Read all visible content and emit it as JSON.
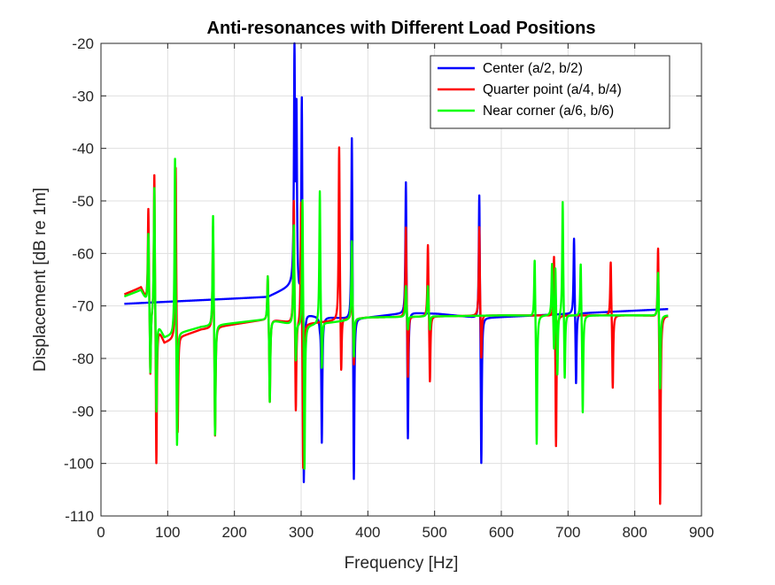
{
  "chart_data": {
    "type": "line",
    "title": "Anti-resonances with Different Load Positions",
    "xlabel": "Frequency [Hz]",
    "ylabel": "Displacement [dB re 1m]",
    "xlim": [
      0,
      900
    ],
    "ylim": [
      -110,
      -20
    ],
    "xticks": [
      "0",
      "100",
      "200",
      "300",
      "400",
      "500",
      "600",
      "700",
      "800",
      "900"
    ],
    "yticks": [
      "-110",
      "-100",
      "-90",
      "-80",
      "-70",
      "-60",
      "-50",
      "-40",
      "-30",
      "-20"
    ],
    "grid": true,
    "legend_position": "top-right",
    "x_range": [
      35,
      850
    ],
    "baseline_line": "linear",
    "series": [
      {
        "name": "Center (a/2, b/2)",
        "color": "#0000ff",
        "baseline": [
          [
            35,
            -69.6
          ],
          [
            250,
            -68.3
          ],
          [
            290,
            -66.0
          ],
          [
            302,
            -71.8
          ],
          [
            380,
            -72.5
          ],
          [
            460,
            -71.3
          ],
          [
            505,
            -71.5
          ],
          [
            570,
            -72.3
          ],
          [
            850,
            -70.6
          ]
        ],
        "features": [
          {
            "f": 290,
            "peak": -22.5,
            "notch": -33
          },
          {
            "f": 301,
            "peak": -28,
            "notch": -107
          },
          {
            "f": 328,
            "peak": -73,
            "notch": -96
          },
          {
            "f": 376,
            "peak": -35.3,
            "notch": -106
          },
          {
            "f": 457,
            "peak": -44.3,
            "notch": -97.5
          },
          {
            "f": 567,
            "peak": -46.5,
            "notch": -102
          },
          {
            "f": 709,
            "peak": -56,
            "notch": -86
          }
        ]
      },
      {
        "name": "Quarter point (a/4, b/4)",
        "color": "#ff0000",
        "baseline": [
          [
            35,
            -67.8
          ],
          [
            60,
            -66.5
          ],
          [
            95,
            -77
          ],
          [
            150,
            -74.5
          ],
          [
            250,
            -72.5
          ],
          [
            300,
            -73.5
          ],
          [
            400,
            -72.2
          ],
          [
            600,
            -71.8
          ],
          [
            850,
            -71.8
          ]
        ],
        "features": [
          {
            "f": 71,
            "peak": -50.5,
            "notch": -84
          },
          {
            "f": 80,
            "peak": -42.6,
            "notch": -101.5
          },
          {
            "f": 112,
            "peak": -42,
            "notch": -97
          },
          {
            "f": 168,
            "peak": -53,
            "notch": -96.5
          },
          {
            "f": 250,
            "peak": -63,
            "notch": -89
          },
          {
            "f": 289,
            "peak": -48.5,
            "notch": -92
          },
          {
            "f": 300,
            "peak": -47.8,
            "notch": -103
          },
          {
            "f": 357,
            "peak": -38.8,
            "notch": -85
          },
          {
            "f": 376,
            "peak": -63,
            "notch": -82
          },
          {
            "f": 457,
            "peak": -54,
            "notch": -85
          },
          {
            "f": 490,
            "peak": -57.3,
            "notch": -85.6
          },
          {
            "f": 567,
            "peak": -54.2,
            "notch": -81.3
          },
          {
            "f": 679,
            "peak": -58.5,
            "notch": -97.8
          },
          {
            "f": 764,
            "peak": -60.5,
            "notch": -86.5
          },
          {
            "f": 835,
            "peak": -56,
            "notch": -109
          }
        ]
      },
      {
        "name": "Near corner (a/6, b/6)",
        "color": "#00ff00",
        "baseline": [
          [
            35,
            -68.2
          ],
          [
            60,
            -67
          ],
          [
            95,
            -76
          ],
          [
            150,
            -74
          ],
          [
            250,
            -72.5
          ],
          [
            300,
            -74
          ],
          [
            400,
            -72.2
          ],
          [
            600,
            -71.8
          ],
          [
            850,
            -71.8
          ]
        ],
        "features": [
          {
            "f": 71,
            "peak": -55.3,
            "notch": -83.5
          },
          {
            "f": 80,
            "peak": -45.8,
            "notch": -91.5
          },
          {
            "f": 111,
            "peak": -40,
            "notch": -99.5
          },
          {
            "f": 168,
            "peak": -51,
            "notch": -96.5
          },
          {
            "f": 250,
            "peak": -63,
            "notch": -89
          },
          {
            "f": 289,
            "peak": -54,
            "notch": -82
          },
          {
            "f": 302,
            "peak": -47.5,
            "notch": -103.3
          },
          {
            "f": 328,
            "peak": -47.3,
            "notch": -84
          },
          {
            "f": 376,
            "peak": -57,
            "notch": -81
          },
          {
            "f": 457,
            "peak": -66,
            "notch": -75
          },
          {
            "f": 490,
            "peak": -66,
            "notch": -75
          },
          {
            "f": 650,
            "peak": -59.3,
            "notch": -97.3
          },
          {
            "f": 676,
            "peak": -61.5,
            "notch": -80.5
          },
          {
            "f": 681,
            "peak": -60.8,
            "notch": -84
          },
          {
            "f": 692,
            "peak": -49,
            "notch": -85.5
          },
          {
            "f": 719,
            "peak": -60.5,
            "notch": -91.2
          },
          {
            "f": 835,
            "peak": -62.5,
            "notch": -86.5
          }
        ]
      }
    ]
  }
}
